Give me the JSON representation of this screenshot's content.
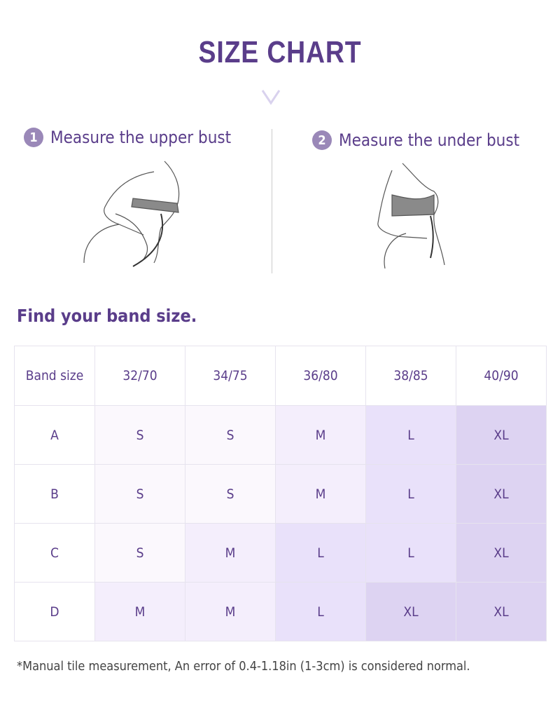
{
  "title": "SIZE CHART",
  "steps": [
    {
      "number": "1",
      "label": "Measure the upper bust"
    },
    {
      "number": "2",
      "label": "Measure the under bust"
    }
  ],
  "subtitle": "Find your band size.",
  "table": {
    "headers": [
      "Band size",
      "32/70",
      "34/75",
      "36/80",
      "38/85",
      "40/90"
    ],
    "rows": [
      {
        "cup": "A",
        "sizes": [
          "S",
          "S",
          "M",
          "L",
          "XL"
        ]
      },
      {
        "cup": "B",
        "sizes": [
          "S",
          "S",
          "M",
          "L",
          "XL"
        ]
      },
      {
        "cup": "C",
        "sizes": [
          "S",
          "M",
          "L",
          "L",
          "XL"
        ]
      },
      {
        "cup": "D",
        "sizes": [
          "M",
          "M",
          "L",
          "XL",
          "XL"
        ]
      }
    ]
  },
  "size_colors": {
    "S": "#fbf8fd",
    "M": "#f4eefc",
    "L": "#e9e1fa",
    "XL": "#ddd3f2"
  },
  "accent": "#5a3d8a",
  "note": "*Manual tile measurement, An error of 0.4-1.18in (1-3cm) is considered normal."
}
